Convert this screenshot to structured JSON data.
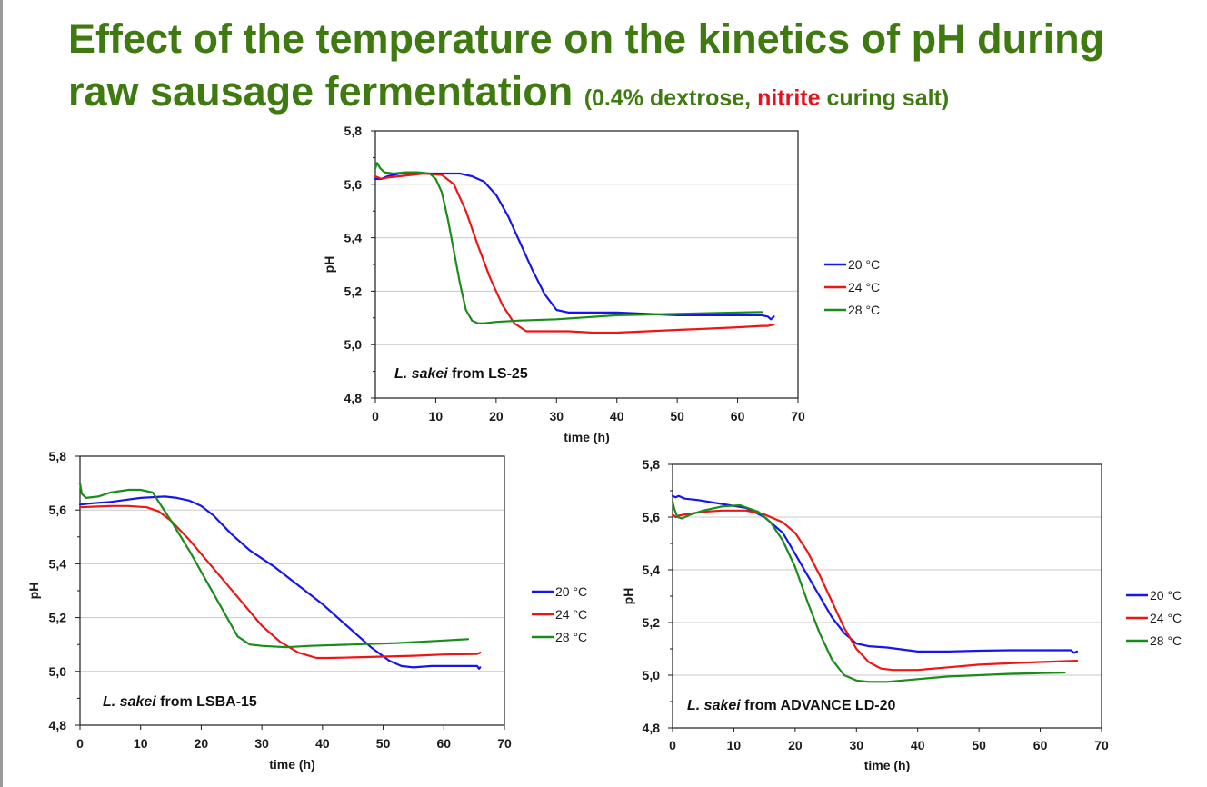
{
  "title": {
    "line1": "Effect of the temperature on the kinetics of pH during",
    "line2": "raw sausage fermentation",
    "sub_open": "(0.4% dextrose, ",
    "sub_red": "nitrite",
    "sub_close": " curing salt)"
  },
  "colors": {
    "title": "#3f7a10",
    "red": "#e8101a",
    "20C": "#1515ee",
    "24C": "#ee1515",
    "28C": "#1a8c1a",
    "grid": "#c8c8c8",
    "axis": "#1a1a1a"
  },
  "chart_data": [
    {
      "type": "line",
      "annotation_italic": "L. sakei",
      "annotation_rest": " from LS-25",
      "xlabel": "time (h)",
      "ylabel": "pH",
      "xlim": [
        0,
        70
      ],
      "ylim": [
        4.8,
        5.8
      ],
      "xticks": [
        "0",
        "10",
        "20",
        "30",
        "40",
        "50",
        "60",
        "70"
      ],
      "yticks": [
        "4,8",
        "5,0",
        "5,2",
        "5,4",
        "5,6",
        "5,8"
      ],
      "grid": "horizontal",
      "legend_position": "right",
      "series": [
        {
          "name": "20 °C",
          "x": [
            0,
            1,
            2,
            4,
            8,
            12,
            14,
            16,
            18,
            20,
            22,
            24,
            26,
            28,
            30,
            32,
            35,
            40,
            45,
            50,
            55,
            60,
            64,
            65,
            65.5,
            66
          ],
          "y": [
            5.62,
            5.62,
            5.63,
            5.64,
            5.64,
            5.64,
            5.64,
            5.63,
            5.61,
            5.56,
            5.48,
            5.38,
            5.28,
            5.19,
            5.13,
            5.12,
            5.12,
            5.12,
            5.115,
            5.11,
            5.11,
            5.11,
            5.11,
            5.105,
            5.095,
            5.105
          ]
        },
        {
          "name": "24 °C",
          "x": [
            0,
            1,
            2,
            4,
            8,
            11,
            13,
            15,
            17,
            19,
            21,
            23,
            25,
            26,
            28,
            32,
            36,
            40,
            45,
            50,
            55,
            60,
            64,
            65,
            66
          ],
          "y": [
            5.63,
            5.62,
            5.625,
            5.63,
            5.64,
            5.635,
            5.6,
            5.5,
            5.37,
            5.25,
            5.15,
            5.08,
            5.05,
            5.05,
            5.05,
            5.05,
            5.045,
            5.045,
            5.05,
            5.055,
            5.06,
            5.065,
            5.07,
            5.07,
            5.075
          ]
        },
        {
          "name": "28 °C",
          "x": [
            0,
            0.3,
            0.8,
            1.5,
            3,
            5,
            7,
            9,
            10,
            11,
            12,
            13,
            14,
            15,
            16,
            17,
            18,
            20,
            24,
            30,
            40,
            50,
            60,
            64
          ],
          "y": [
            5.66,
            5.68,
            5.66,
            5.645,
            5.64,
            5.645,
            5.645,
            5.64,
            5.62,
            5.57,
            5.47,
            5.35,
            5.23,
            5.13,
            5.09,
            5.08,
            5.08,
            5.085,
            5.09,
            5.095,
            5.11,
            5.115,
            5.12,
            5.122
          ]
        }
      ]
    },
    {
      "type": "line",
      "annotation_italic": "L. sakei",
      "annotation_rest": " from LSBA-15",
      "xlabel": "time (h)",
      "ylabel": "pH",
      "xlim": [
        0,
        70
      ],
      "ylim": [
        4.8,
        5.8
      ],
      "xticks": [
        "0",
        "10",
        "20",
        "30",
        "40",
        "50",
        "60",
        "70"
      ],
      "yticks": [
        "4,8",
        "5,0",
        "5,2",
        "5,4",
        "5,6",
        "5,8"
      ],
      "grid": "horizontal",
      "legend_position": "right",
      "series": [
        {
          "name": "20 °C",
          "x": [
            0,
            2,
            5,
            10,
            14,
            16,
            18,
            20,
            22,
            25,
            28,
            32,
            36,
            40,
            44,
            48,
            51,
            53,
            55,
            58,
            62,
            65.5,
            65.8,
            66
          ],
          "y": [
            5.62,
            5.625,
            5.63,
            5.645,
            5.65,
            5.645,
            5.635,
            5.615,
            5.58,
            5.51,
            5.45,
            5.39,
            5.32,
            5.25,
            5.17,
            5.09,
            5.04,
            5.02,
            5.015,
            5.02,
            5.02,
            5.02,
            5.01,
            5.015
          ]
        },
        {
          "name": "24 °C",
          "x": [
            0,
            2,
            5,
            8,
            11,
            13,
            15,
            18,
            21,
            24,
            27,
            30,
            33,
            36,
            39,
            41,
            45,
            50,
            55,
            60,
            65.5,
            66
          ],
          "y": [
            5.61,
            5.612,
            5.615,
            5.615,
            5.61,
            5.595,
            5.56,
            5.49,
            5.41,
            5.33,
            5.25,
            5.17,
            5.11,
            5.07,
            5.05,
            5.05,
            5.052,
            5.055,
            5.058,
            5.063,
            5.065,
            5.07
          ]
        },
        {
          "name": "28 °C",
          "x": [
            0,
            0.3,
            1,
            3,
            5,
            8,
            10,
            12,
            13,
            15,
            18,
            21,
            24,
            26,
            28,
            30,
            34,
            38,
            45,
            52,
            60,
            64
          ],
          "y": [
            5.7,
            5.66,
            5.645,
            5.65,
            5.665,
            5.675,
            5.675,
            5.665,
            5.63,
            5.56,
            5.45,
            5.33,
            5.21,
            5.13,
            5.1,
            5.095,
            5.09,
            5.095,
            5.1,
            5.105,
            5.115,
            5.12
          ]
        }
      ]
    },
    {
      "type": "line",
      "annotation_italic": "L. sakei",
      "annotation_rest": " from ADVANCE LD-20",
      "xlabel": "time (h)",
      "ylabel": "pH",
      "xlim": [
        0,
        70
      ],
      "ylim": [
        4.8,
        5.8
      ],
      "xticks": [
        "0",
        "10",
        "20",
        "30",
        "40",
        "50",
        "60",
        "70"
      ],
      "yticks": [
        "4,8",
        "5,0",
        "5,2",
        "5,4",
        "5,6",
        "5,8"
      ],
      "grid": "horizontal",
      "legend_position": "right",
      "series": [
        {
          "name": "20 °C",
          "x": [
            0,
            0.5,
            1,
            1.5,
            2,
            4,
            8,
            12,
            15,
            18,
            20,
            22,
            24,
            26,
            28,
            30,
            32,
            35,
            40,
            43,
            45,
            50,
            55,
            60,
            65,
            65.5,
            66
          ],
          "y": [
            5.68,
            5.675,
            5.68,
            5.675,
            5.67,
            5.665,
            5.65,
            5.635,
            5.6,
            5.54,
            5.46,
            5.38,
            5.3,
            5.22,
            5.16,
            5.12,
            5.11,
            5.105,
            5.09,
            5.09,
            5.09,
            5.093,
            5.095,
            5.095,
            5.095,
            5.085,
            5.09
          ]
        },
        {
          "name": "24 °C",
          "x": [
            0,
            0.5,
            1,
            2,
            5,
            8,
            12,
            15,
            18,
            20,
            22,
            24,
            26,
            28,
            30,
            32,
            34,
            36,
            40,
            45,
            50,
            55,
            60,
            66
          ],
          "y": [
            5.61,
            5.6,
            5.605,
            5.61,
            5.62,
            5.625,
            5.625,
            5.61,
            5.58,
            5.54,
            5.47,
            5.38,
            5.28,
            5.18,
            5.1,
            5.05,
            5.025,
            5.02,
            5.02,
            5.03,
            5.04,
            5.045,
            5.05,
            5.055
          ]
        },
        {
          "name": "28 °C",
          "x": [
            0,
            0.3,
            0.8,
            1.5,
            3,
            5,
            8,
            11,
            14,
            16,
            18,
            20,
            22,
            24,
            26,
            28,
            30,
            32,
            35,
            40,
            45,
            50,
            55,
            60,
            64
          ],
          "y": [
            5.66,
            5.63,
            5.6,
            5.595,
            5.61,
            5.625,
            5.64,
            5.645,
            5.62,
            5.58,
            5.51,
            5.41,
            5.28,
            5.16,
            5.06,
            5.0,
            4.98,
            4.975,
            4.975,
            4.985,
            4.995,
            5.0,
            5.005,
            5.008,
            5.01
          ]
        }
      ]
    }
  ]
}
